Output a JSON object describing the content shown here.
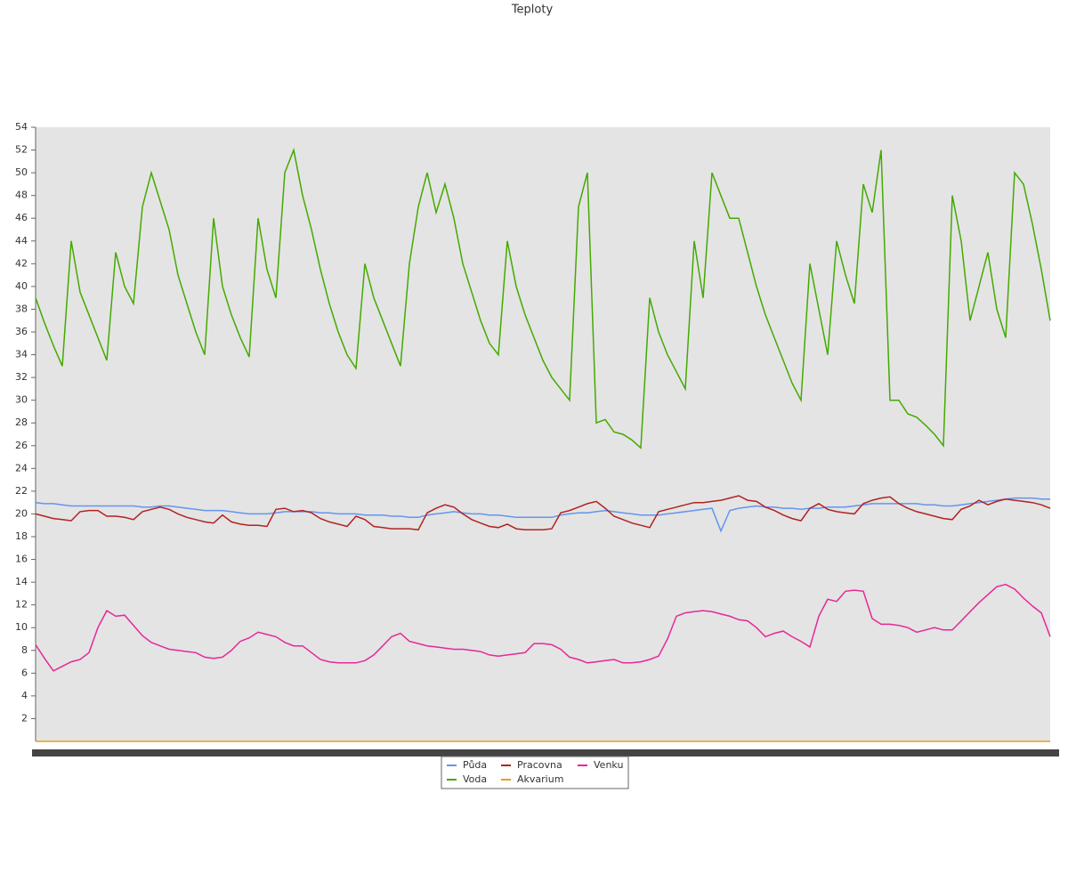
{
  "chart_data": {
    "type": "line",
    "title": "Teploty",
    "ylim": [
      0,
      54
    ],
    "yticks": [
      2,
      4,
      6,
      8,
      10,
      12,
      14,
      16,
      18,
      20,
      22,
      24,
      26,
      28,
      30,
      32,
      34,
      36,
      38,
      40,
      42,
      44,
      46,
      48,
      50,
      52,
      54
    ],
    "series": [
      {
        "name": "Půda",
        "color": "#6495ed",
        "values": [
          21,
          20.9,
          20.9,
          20.8,
          20.7,
          20.7,
          20.7,
          20.7,
          20.7,
          20.7,
          20.7,
          20.7,
          20.6,
          20.6,
          20.7,
          20.7,
          20.6,
          20.5,
          20.4,
          20.3,
          20.3,
          20.3,
          20.2,
          20.1,
          20,
          20,
          20,
          20.1,
          20.2,
          20.2,
          20.2,
          20.2,
          20.1,
          20.1,
          20,
          20,
          20,
          19.9,
          19.9,
          19.9,
          19.8,
          19.8,
          19.7,
          19.7,
          19.9,
          20,
          20.1,
          20.2,
          20.1,
          20,
          20,
          19.9,
          19.9,
          19.8,
          19.7,
          19.7,
          19.7,
          19.7,
          19.7,
          19.9,
          20,
          20.1,
          20.1,
          20.2,
          20.3,
          20.2,
          20.1,
          20,
          19.9,
          19.9,
          19.9,
          20,
          20.1,
          20.2,
          20.3,
          20.4,
          20.5,
          18.5,
          20.3,
          20.5,
          20.6,
          20.7,
          20.6,
          20.6,
          20.5,
          20.5,
          20.4,
          20.5,
          20.5,
          20.6,
          20.6,
          20.6,
          20.7,
          20.8,
          20.9,
          20.9,
          20.9,
          20.9,
          20.9,
          20.9,
          20.8,
          20.8,
          20.7,
          20.7,
          20.8,
          20.9,
          21,
          21.1,
          21.2,
          21.3,
          21.4,
          21.4,
          21.4,
          21.3,
          21.3
        ]
      },
      {
        "name": "Voda",
        "color": "#44aa00",
        "values": [
          39,
          36.8,
          34.8,
          33,
          44,
          39.5,
          37.5,
          35.5,
          33.5,
          43,
          40,
          38.5,
          47,
          50,
          47.5,
          45,
          41,
          38.5,
          36,
          34,
          46,
          40,
          37.5,
          35.5,
          33.8,
          46,
          41.5,
          39,
          50,
          52,
          48,
          45,
          41.5,
          38.5,
          36,
          34,
          32.8,
          42,
          39,
          37,
          35,
          33,
          42,
          47,
          50,
          46.5,
          49,
          46,
          42,
          39.5,
          37,
          35,
          34,
          44,
          40,
          37.5,
          35.5,
          33.5,
          32,
          31,
          30,
          47,
          50,
          28,
          28.3,
          27.2,
          27,
          26.5,
          25.8,
          39,
          36,
          34,
          32.5,
          31,
          44,
          39,
          50,
          48,
          46,
          46,
          43,
          40,
          37.5,
          35.5,
          33.5,
          31.5,
          30,
          42,
          38,
          34,
          44,
          41,
          38.5,
          49,
          46.5,
          52,
          30,
          30,
          28.8,
          28.5,
          27.8,
          27,
          26,
          48,
          44,
          37,
          40,
          43,
          38,
          35.5,
          50,
          49,
          45.5,
          41.5,
          37
        ]
      },
      {
        "name": "Pracovna",
        "color": "#b22222",
        "values": [
          20,
          19.8,
          19.6,
          19.5,
          19.4,
          20.2,
          20.3,
          20.3,
          19.8,
          19.8,
          19.7,
          19.5,
          20.2,
          20.4,
          20.6,
          20.4,
          20,
          19.7,
          19.5,
          19.3,
          19.2,
          19.9,
          19.3,
          19.1,
          19,
          19,
          18.9,
          20.4,
          20.5,
          20.2,
          20.3,
          20.1,
          19.6,
          19.3,
          19.1,
          18.9,
          19.8,
          19.5,
          18.9,
          18.8,
          18.7,
          18.7,
          18.7,
          18.6,
          20.1,
          20.5,
          20.8,
          20.6,
          20,
          19.5,
          19.2,
          18.9,
          18.8,
          19.1,
          18.7,
          18.6,
          18.6,
          18.6,
          18.7,
          20.1,
          20.3,
          20.6,
          20.9,
          21.1,
          20.5,
          19.8,
          19.5,
          19.2,
          19,
          18.8,
          20.2,
          20.4,
          20.6,
          20.8,
          21,
          21,
          21.1,
          21.2,
          21.4,
          21.6,
          21.2,
          21.1,
          20.6,
          20.3,
          19.9,
          19.6,
          19.4,
          20.5,
          20.9,
          20.4,
          20.2,
          20.1,
          20,
          20.9,
          21.2,
          21.4,
          21.5,
          20.9,
          20.5,
          20.2,
          20,
          19.8,
          19.6,
          19.5,
          20.4,
          20.7,
          21.2,
          20.8,
          21.1,
          21.3,
          21.2,
          21.1,
          21,
          20.8,
          20.5
        ]
      },
      {
        "name": "Akvarium",
        "color": "#e6a020",
        "values": [
          0,
          0,
          0,
          0,
          0,
          0,
          0,
          0,
          0,
          0,
          0,
          0,
          0,
          0,
          0,
          0,
          0,
          0,
          0,
          0,
          0,
          0,
          0,
          0,
          0,
          0,
          0,
          0,
          0,
          0,
          0,
          0,
          0,
          0,
          0,
          0,
          0,
          0,
          0,
          0,
          0,
          0,
          0,
          0,
          0,
          0,
          0,
          0,
          0,
          0,
          0,
          0,
          0,
          0,
          0,
          0,
          0,
          0,
          0,
          0,
          0,
          0,
          0,
          0,
          0,
          0,
          0,
          0,
          0,
          0,
          0,
          0,
          0,
          0,
          0,
          0,
          0,
          0,
          0,
          0,
          0,
          0,
          0,
          0,
          0,
          0,
          0,
          0,
          0,
          0,
          0,
          0,
          0,
          0,
          0,
          0,
          0,
          0,
          0,
          0,
          0,
          0,
          0,
          0,
          0,
          0,
          0,
          0,
          0,
          0,
          0,
          0,
          0,
          0,
          0
        ]
      },
      {
        "name": "Venku",
        "color": "#e62899",
        "values": [
          8.5,
          7.3,
          6.2,
          6.6,
          7,
          7.2,
          7.8,
          10,
          11.5,
          11,
          11.1,
          10.2,
          9.3,
          8.7,
          8.4,
          8.1,
          8,
          7.9,
          7.8,
          7.4,
          7.3,
          7.4,
          8,
          8.8,
          9.1,
          9.6,
          9.4,
          9.2,
          8.7,
          8.4,
          8.4,
          7.8,
          7.2,
          7,
          6.9,
          6.9,
          6.9,
          7.1,
          7.6,
          8.4,
          9.2,
          9.5,
          8.8,
          8.6,
          8.4,
          8.3,
          8.2,
          8.1,
          8.1,
          8,
          7.9,
          7.6,
          7.5,
          7.6,
          7.7,
          7.8,
          8.6,
          8.6,
          8.5,
          8.1,
          7.4,
          7.2,
          6.9,
          7,
          7.1,
          7.2,
          6.9,
          6.9,
          7,
          7.2,
          7.5,
          9,
          11,
          11.3,
          11.4,
          11.5,
          11.4,
          11.2,
          11,
          10.7,
          10.6,
          10,
          9.2,
          9.5,
          9.7,
          9.2,
          8.8,
          8.3,
          11,
          12.5,
          12.3,
          13.2,
          13.3,
          13.2,
          10.8,
          10.3,
          10.3,
          10.2,
          10,
          9.6,
          9.8,
          10,
          9.8,
          9.8,
          10.6,
          11.4,
          12.2,
          12.9,
          13.6,
          13.8,
          13.4,
          12.6,
          11.9,
          11.3,
          9.2
        ]
      }
    ]
  }
}
